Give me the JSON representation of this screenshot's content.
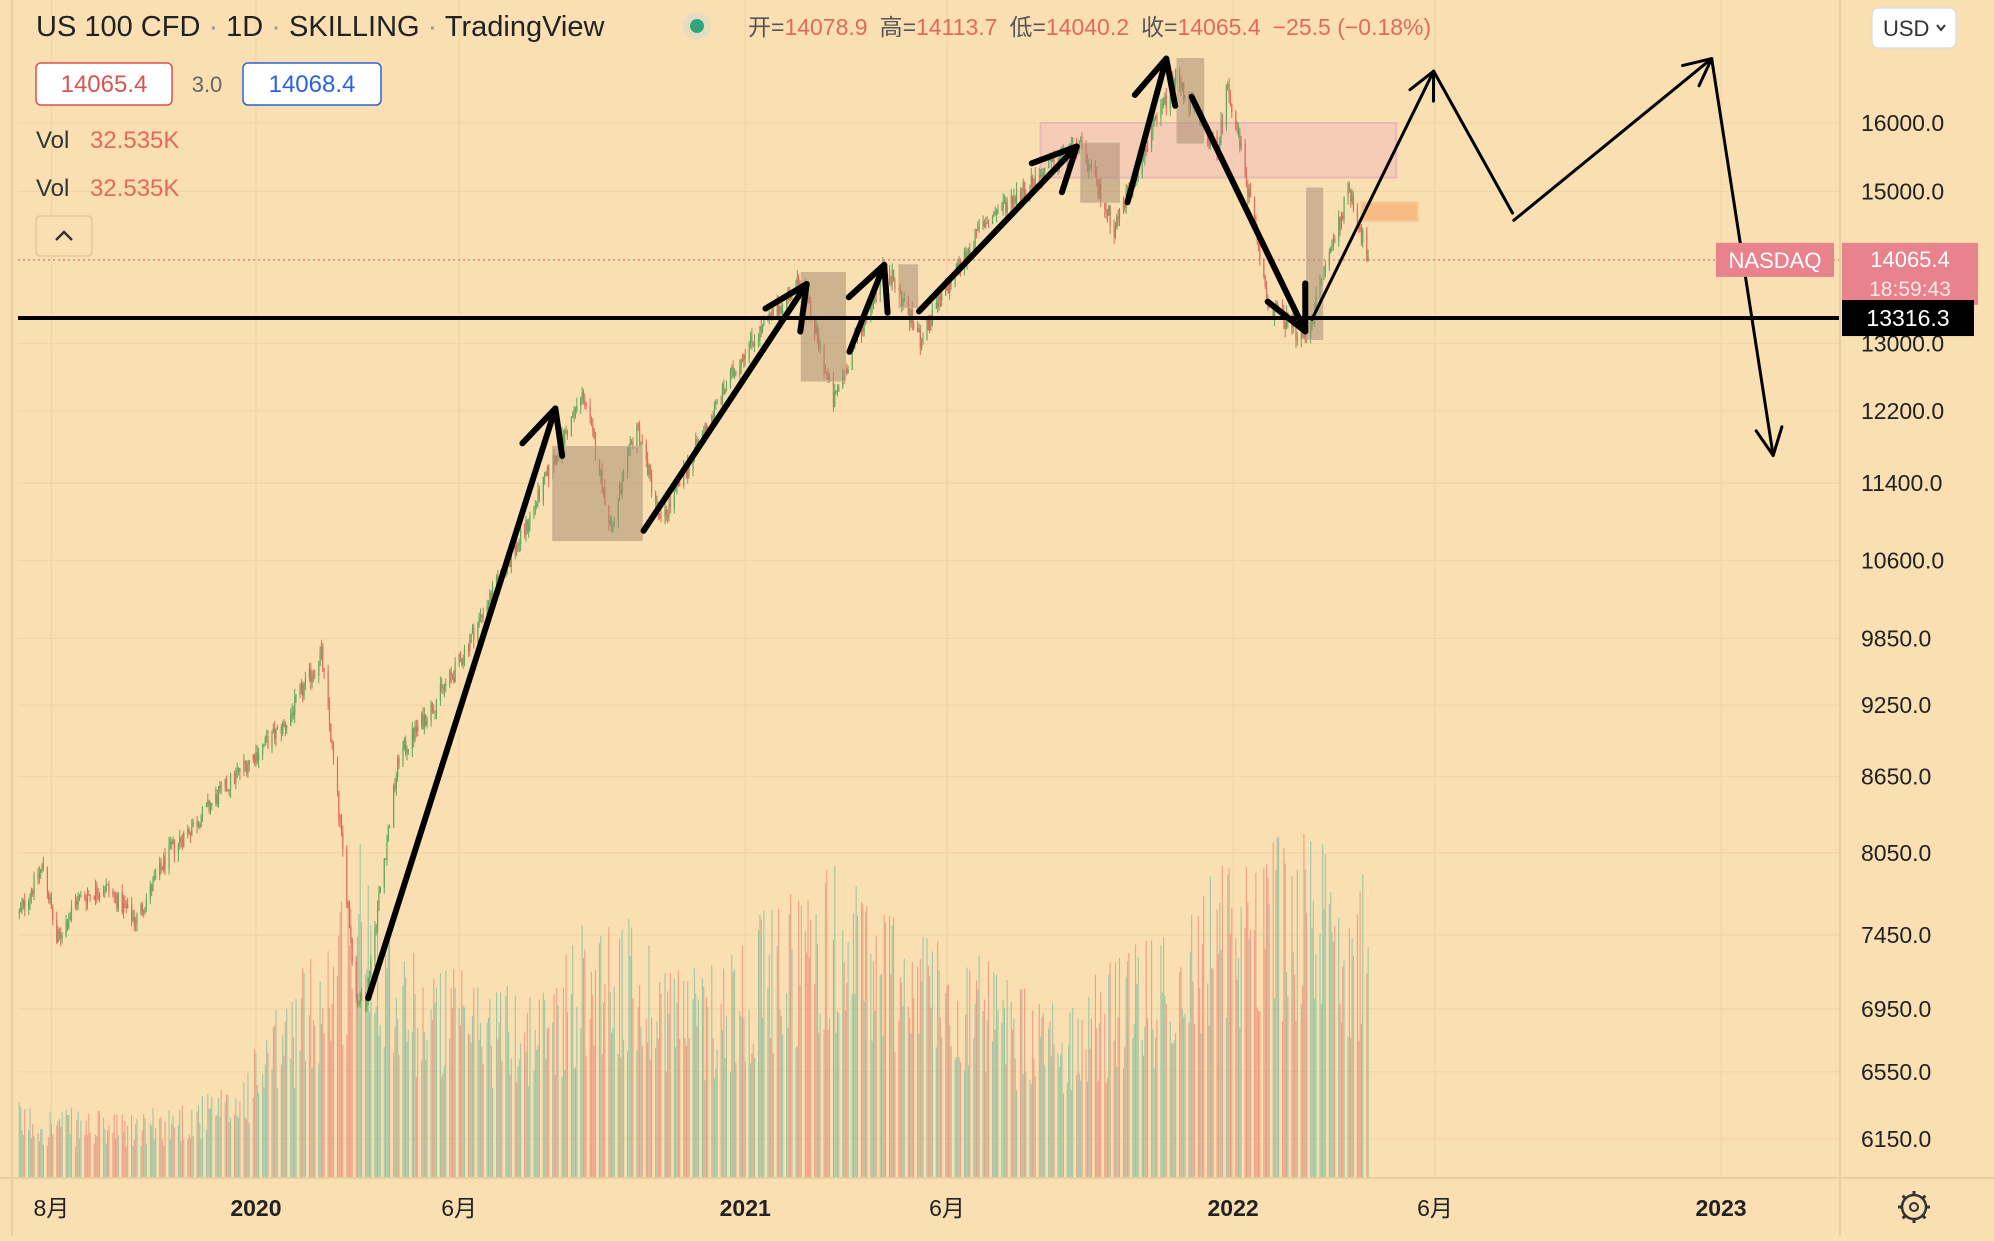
{
  "header": {
    "symbol": "US 100 CFD",
    "interval": "1D",
    "exchange": "SKILLING",
    "platform": "TradingView",
    "open_label": "开=",
    "open": "14078.9",
    "high_label": "高=",
    "high": "14113.7",
    "low_label": "低=",
    "low": "14040.2",
    "close_label": "收=",
    "close": "14065.4",
    "change": "−25.5 (−0.18%)",
    "sell_price": "14065.4",
    "spread": "3.0",
    "buy_price": "14068.4",
    "vol_rows": [
      {
        "label": "Vol",
        "value": "32.535K"
      },
      {
        "label": "Vol",
        "value": "32.535K"
      }
    ],
    "collapse_icon": "chevron-up-icon"
  },
  "toolbar": {
    "currency": "USD",
    "settings_icon": "gear-icon"
  },
  "badges": {
    "symbol_tag": "NASDAQ",
    "last_price": "14065.4",
    "countdown": "18:59:43",
    "line_price": "13316.3"
  },
  "colors": {
    "background": "#f9dfb1",
    "up": "#5ea95d",
    "down": "#e06a5e",
    "vol_up": "#7fbfa0",
    "vol_down": "#ea8a78",
    "zone": "#f2c1bb",
    "box": "#a98e73",
    "target": "#f6b67c",
    "badge": "#e8828c",
    "drawing": "#000000"
  },
  "chart_data": {
    "type": "candlestick",
    "y_scale": "log",
    "ylim": [
      6000,
      17300
    ],
    "xlim": [
      "2019-07-07",
      "2023-03-31"
    ],
    "y_ticks": [
      "16000.0",
      "15000.0",
      "13000.0",
      "12200.0",
      "11400.0",
      "10600.0",
      "9850.0",
      "9250.0",
      "8650.0",
      "8050.0",
      "7450.0",
      "6950.0",
      "6550.0",
      "6150.0"
    ],
    "x_ticks": [
      {
        "date": "2019-08-01",
        "label": "8月",
        "bold": false
      },
      {
        "date": "2020-01-01",
        "label": "2020",
        "bold": true
      },
      {
        "date": "2020-06-01",
        "label": "6月",
        "bold": false
      },
      {
        "date": "2021-01-01",
        "label": "2021",
        "bold": true
      },
      {
        "date": "2021-06-01",
        "label": "6月",
        "bold": false
      },
      {
        "date": "2022-01-01",
        "label": "2022",
        "bold": true
      },
      {
        "date": "2022-06-01",
        "label": "6月",
        "bold": false
      },
      {
        "date": "2023-01-01",
        "label": "2023",
        "bold": true
      }
    ],
    "price_path": [
      [
        "2019-07-08",
        7600
      ],
      [
        "2019-07-26",
        7950
      ],
      [
        "2019-08-05",
        7400
      ],
      [
        "2019-08-20",
        7700
      ],
      [
        "2019-09-10",
        7800
      ],
      [
        "2019-10-03",
        7550
      ],
      [
        "2019-10-28",
        8050
      ],
      [
        "2019-11-25",
        8380
      ],
      [
        "2019-12-27",
        8780
      ],
      [
        "2020-01-24",
        9100
      ],
      [
        "2020-02-19",
        9700
      ],
      [
        "2020-03-16",
        7020
      ],
      [
        "2020-03-23",
        6990
      ],
      [
        "2020-04-17",
        8800
      ],
      [
        "2020-05-29",
        9550
      ],
      [
        "2020-06-23",
        10200
      ],
      [
        "2020-07-20",
        10900
      ],
      [
        "2020-09-02",
        12400
      ],
      [
        "2020-09-23",
        10900
      ],
      [
        "2020-10-12",
        12050
      ],
      [
        "2020-10-30",
        10960
      ],
      [
        "2020-12-31",
        12900
      ],
      [
        "2021-02-12",
        13800
      ],
      [
        "2021-03-08",
        12300
      ],
      [
        "2021-04-16",
        14000
      ],
      [
        "2021-05-12",
        13050
      ],
      [
        "2021-06-28",
        14550
      ],
      [
        "2021-09-07",
        15700
      ],
      [
        "2021-10-04",
        14500
      ],
      [
        "2021-11-19",
        16700
      ],
      [
        "2021-12-20",
        15550
      ],
      [
        "2021-12-28",
        16600
      ],
      [
        "2022-01-27",
        13500
      ],
      [
        "2022-02-24",
        13050
      ],
      [
        "2022-03-29",
        15050
      ],
      [
        "2022-04-12",
        14065
      ]
    ],
    "volume_path": [
      [
        "2019-07-08",
        0.13
      ],
      [
        "2019-10-01",
        0.11
      ],
      [
        "2019-12-15",
        0.16
      ],
      [
        "2020-02-25",
        0.45
      ],
      [
        "2020-03-20",
        0.6
      ],
      [
        "2020-05-01",
        0.38
      ],
      [
        "2020-08-01",
        0.33
      ],
      [
        "2020-09-10",
        0.48
      ],
      [
        "2020-12-01",
        0.37
      ],
      [
        "2021-03-01",
        0.55
      ],
      [
        "2021-05-15",
        0.45
      ],
      [
        "2021-08-15",
        0.3
      ],
      [
        "2021-11-01",
        0.42
      ],
      [
        "2022-01-25",
        0.62
      ],
      [
        "2022-03-10",
        0.58
      ],
      [
        "2022-04-12",
        0.52
      ]
    ],
    "horizontal_line": {
      "price": 13316.3
    },
    "zones": [
      {
        "kind": "resistance",
        "x0": "2021-08-10",
        "x1": "2022-05-03",
        "y0": 15200,
        "y1": 16000
      },
      {
        "kind": "target",
        "x0": "2022-04-07",
        "x1": "2022-05-19",
        "y0": 14590,
        "y1": 14850
      }
    ],
    "boxes": [
      {
        "x0": "2020-08-10",
        "x1": "2020-10-16",
        "y0": 10800,
        "y1": 11800
      },
      {
        "x0": "2021-02-12",
        "x1": "2021-03-17",
        "y0": 12550,
        "y1": 13900
      },
      {
        "x0": "2021-04-26",
        "x1": "2021-05-10",
        "y0": 13450,
        "y1": 14000
      },
      {
        "x0": "2021-09-09",
        "x1": "2021-10-08",
        "y0": 14850,
        "y1": 15700
      },
      {
        "x0": "2021-11-20",
        "x1": "2021-12-10",
        "y0": 15700,
        "y1": 17000
      },
      {
        "x0": "2022-02-25",
        "x1": "2022-03-09",
        "y0": 13050,
        "y1": 15050
      }
    ],
    "arrows": [
      {
        "kind": "bold",
        "x0": "2020-03-25",
        "y0": 7020,
        "x1": "2020-08-12",
        "y1": 12230
      },
      {
        "kind": "bold",
        "x0": "2020-10-17",
        "y0": 10900,
        "x1": "2021-02-16",
        "y1": 13750
      },
      {
        "kind": "bold",
        "x0": "2021-03-20",
        "y0": 12900,
        "x1": "2021-04-15",
        "y1": 14000
      },
      {
        "kind": "bold",
        "x0": "2021-05-11",
        "y0": 13400,
        "x1": "2021-09-06",
        "y1": 15650
      },
      {
        "kind": "bold",
        "x0": "2021-10-14",
        "y0": 14850,
        "x1": "2021-11-12",
        "y1": 17000
      },
      {
        "kind": "bold",
        "x0": "2021-12-01",
        "y0": 16400,
        "x1": "2022-02-24",
        "y1": 13150
      },
      {
        "kind": "thin",
        "x0": "2022-03-01",
        "y0": 13300,
        "x1": "2022-05-31",
        "y1": 16800
      },
      {
        "kind": "thin_seg",
        "x0": "2022-05-31",
        "y0": 16800,
        "x1": "2022-07-29",
        "y1": 14700
      },
      {
        "kind": "thin",
        "x0": "2022-07-30",
        "y0": 14600,
        "x1": "2022-12-25",
        "y1": 17000
      },
      {
        "kind": "thin",
        "x0": "2022-12-25",
        "y0": 17000,
        "x1": "2023-02-09",
        "y1": 11700
      }
    ]
  }
}
